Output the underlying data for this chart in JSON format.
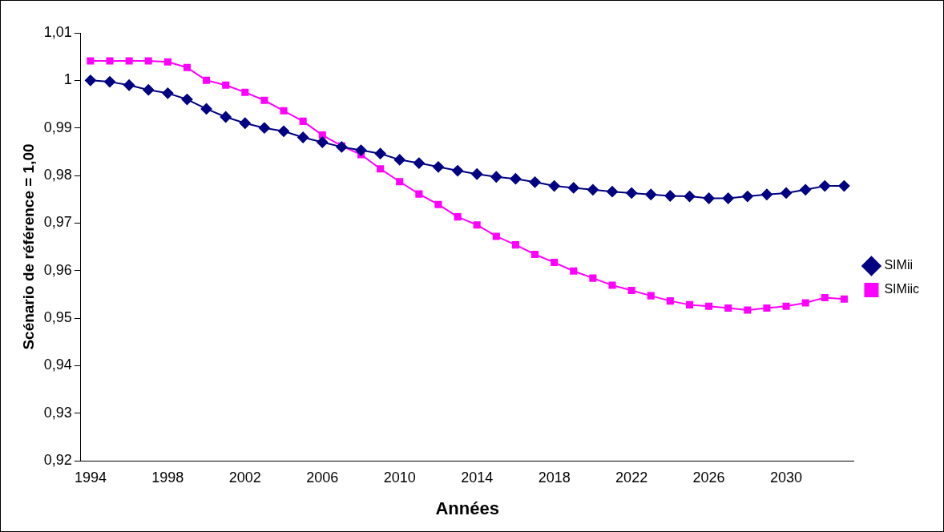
{
  "chart_data": {
    "type": "line",
    "xlabel": "Années",
    "ylabel": "Scénario de référence = 1,00",
    "categories": [
      "1994",
      null,
      null,
      null,
      "1998",
      null,
      null,
      null,
      "2002",
      null,
      null,
      null,
      "2006",
      null,
      null,
      null,
      "2010",
      null,
      null,
      null,
      "2014",
      null,
      null,
      null,
      "2018",
      null,
      null,
      null,
      "2022",
      null,
      null,
      null,
      "2026",
      null,
      null,
      null,
      "2030",
      null,
      null,
      null
    ],
    "series": [
      {
        "name": "SIMii",
        "color": "#000080",
        "marker": "diamond",
        "values": [
          1.0,
          0.9997,
          0.999,
          0.998,
          0.9973,
          0.996,
          0.994,
          0.9923,
          0.991,
          0.99,
          0.9893,
          0.988,
          0.987,
          0.986,
          0.9853,
          0.9846,
          0.9833,
          0.9826,
          0.9818,
          0.981,
          0.9803,
          0.9797,
          0.9793,
          0.9786,
          0.9778,
          0.9774,
          0.977,
          0.9766,
          0.9763,
          0.976,
          0.9757,
          0.9756,
          0.9752,
          0.9752,
          0.9756,
          0.976,
          0.9763,
          0.977,
          0.9778,
          0.9778
        ]
      },
      {
        "name": "SIMiic",
        "color": "#ff00ff",
        "marker": "square",
        "values": [
          1.0041,
          1.0041,
          1.0041,
          1.0041,
          1.0039,
          1.0027,
          1.0,
          0.999,
          0.9975,
          0.9958,
          0.9936,
          0.9914,
          0.9885,
          0.9862,
          0.9844,
          0.9814,
          0.9787,
          0.9761,
          0.9739,
          0.9713,
          0.9696,
          0.9672,
          0.9654,
          0.9634,
          0.9617,
          0.9599,
          0.9584,
          0.9569,
          0.9558,
          0.9547,
          0.9536,
          0.9528,
          0.9525,
          0.9521,
          0.9517,
          0.9521,
          0.9525,
          0.9532,
          0.9543,
          0.954
        ]
      }
    ],
    "ylim": [
      0.92,
      1.01
    ],
    "yticks": [
      {
        "value": 0.92,
        "label": "0,92"
      },
      {
        "value": 0.93,
        "label": "0,93"
      },
      {
        "value": 0.94,
        "label": "0,94"
      },
      {
        "value": 0.95,
        "label": "0,95"
      },
      {
        "value": 0.96,
        "label": "0,96"
      },
      {
        "value": 0.97,
        "label": "0,97"
      },
      {
        "value": 0.98,
        "label": "0,98"
      },
      {
        "value": 0.99,
        "label": "0,99"
      },
      {
        "value": 1,
        "label": "1"
      },
      {
        "value": 1.01,
        "label": "1,01"
      }
    ],
    "grid": false,
    "legend": "right",
    "line_style": "solid"
  }
}
